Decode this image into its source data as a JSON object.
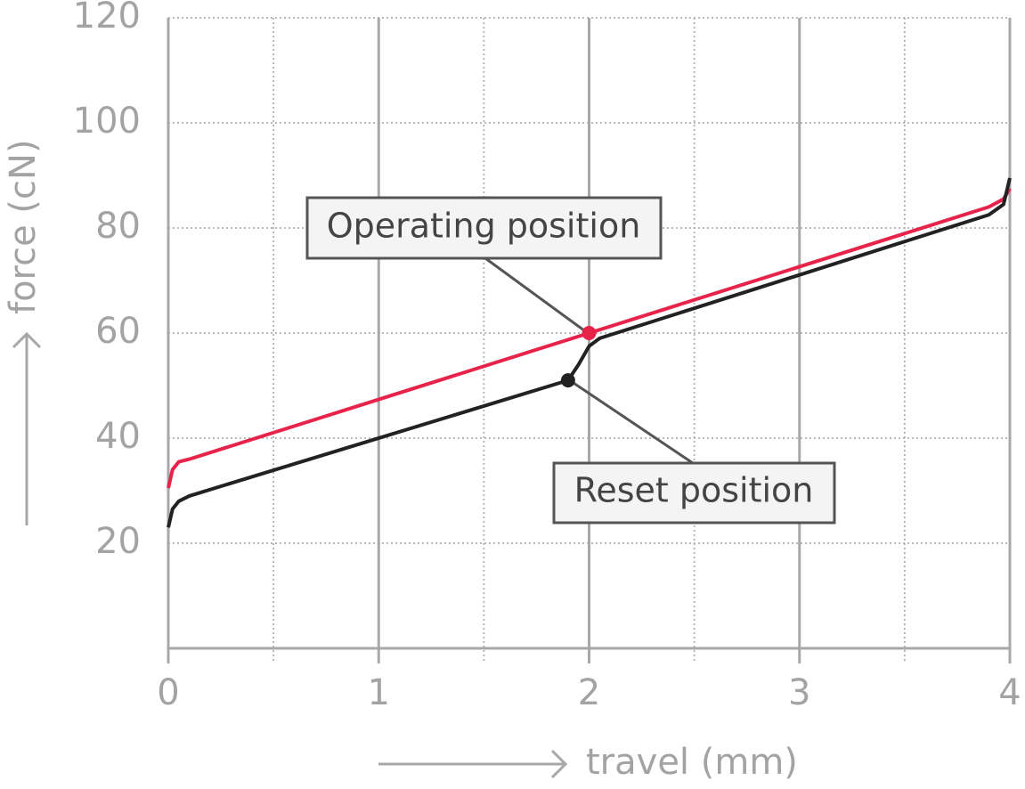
{
  "chart_data": {
    "type": "line",
    "xlabel": "travel (mm)",
    "ylabel": "force (cN)",
    "xlim": [
      0,
      4
    ],
    "xticks": [
      0,
      1,
      2,
      3,
      4
    ],
    "ylim": [
      0,
      120
    ],
    "yticks": [
      20,
      40,
      60,
      80,
      100,
      120
    ],
    "grid": true,
    "series": [
      {
        "color": "#e8234a",
        "x": [
          0,
          0.02,
          0.05,
          0.1,
          2,
          3.9,
          3.97,
          4
        ],
        "values": [
          30.5,
          34,
          35.5,
          36,
          60,
          84,
          85.5,
          87.5
        ]
      },
      {
        "color": "#222222",
        "x": [
          0,
          0.02,
          0.05,
          0.1,
          1.9,
          1.95,
          2,
          2.05,
          3.9,
          3.97,
          4
        ],
        "values": [
          23,
          26.5,
          28,
          29,
          51,
          54,
          57.5,
          59,
          82.5,
          84.5,
          89.5
        ]
      }
    ],
    "annotations": [
      {
        "text": "Operating position",
        "x": 2,
        "y": 60,
        "color": "#e8234a"
      },
      {
        "text": "Reset position",
        "x": 1.9,
        "y": 51,
        "color": "#222222"
      }
    ]
  }
}
